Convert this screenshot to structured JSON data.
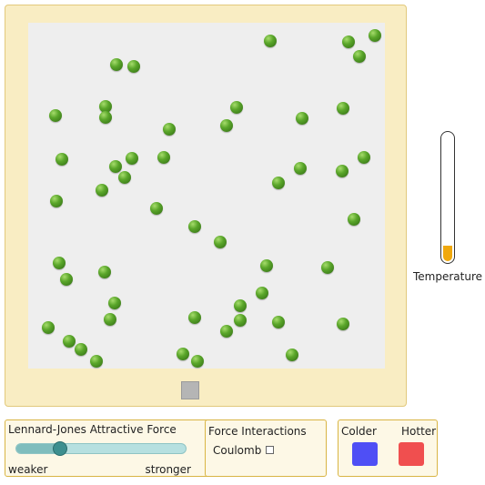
{
  "colors": {
    "frame": "#f9edc3",
    "simulation_area": "#eeeeee",
    "molecule": "#5aa62a",
    "thermometer_fill": "#f0a80c",
    "colder": "#4f4ff5",
    "hotter": "#f04f4f",
    "slider": "#3d8f8f"
  },
  "molecules": {
    "count": 55
  },
  "thermometer": {
    "label": "Temperature",
    "level": 0.12
  },
  "force_panel": {
    "title": "Lennard-Jones Attractive Force",
    "min_label": "weaker",
    "max_label": "stronger",
    "value": 0.26
  },
  "interactions_panel": {
    "title": "Force Interactions",
    "coulomb_label": "Coulomb",
    "coulomb_checked": false
  },
  "heat_panel": {
    "colder_label": "Colder",
    "hotter_label": "Hotter"
  },
  "icons": {
    "volume_handle": "square-handle-icon",
    "checkbox": "checkbox-icon"
  }
}
